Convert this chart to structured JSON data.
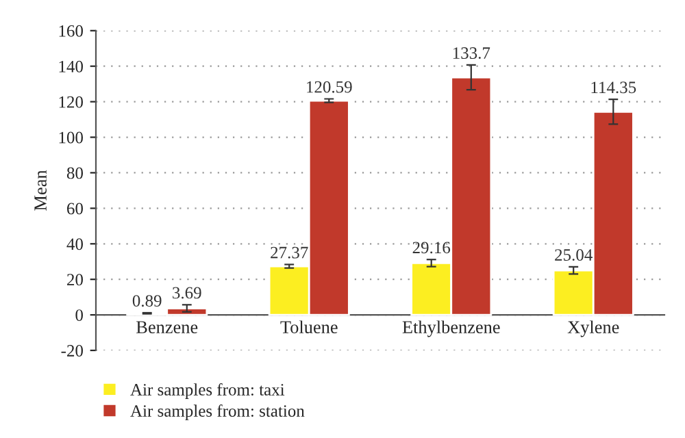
{
  "chart_data": {
    "type": "bar",
    "ylabel": "Mean",
    "categories": [
      "Benzene",
      "Toluene",
      "Ethylbenzene",
      "Xylene"
    ],
    "series": [
      {
        "name": "Air samples from: taxi",
        "color": "#fcee21",
        "values": [
          0.89,
          27.37,
          29.16,
          25.04
        ],
        "errors": [
          0.3,
          1,
          2,
          2
        ]
      },
      {
        "name": "Air samples from: station",
        "color": "#c1392b",
        "values": [
          3.69,
          120.59,
          133.7,
          114.35
        ],
        "errors": [
          2,
          1,
          7,
          7
        ]
      }
    ],
    "ylim": [
      -20,
      160
    ],
    "yticks": [
      -20,
      0,
      20,
      40,
      60,
      80,
      100,
      120,
      140,
      160
    ],
    "grid": "y",
    "legend": "bottom left",
    "data_labels": true
  }
}
